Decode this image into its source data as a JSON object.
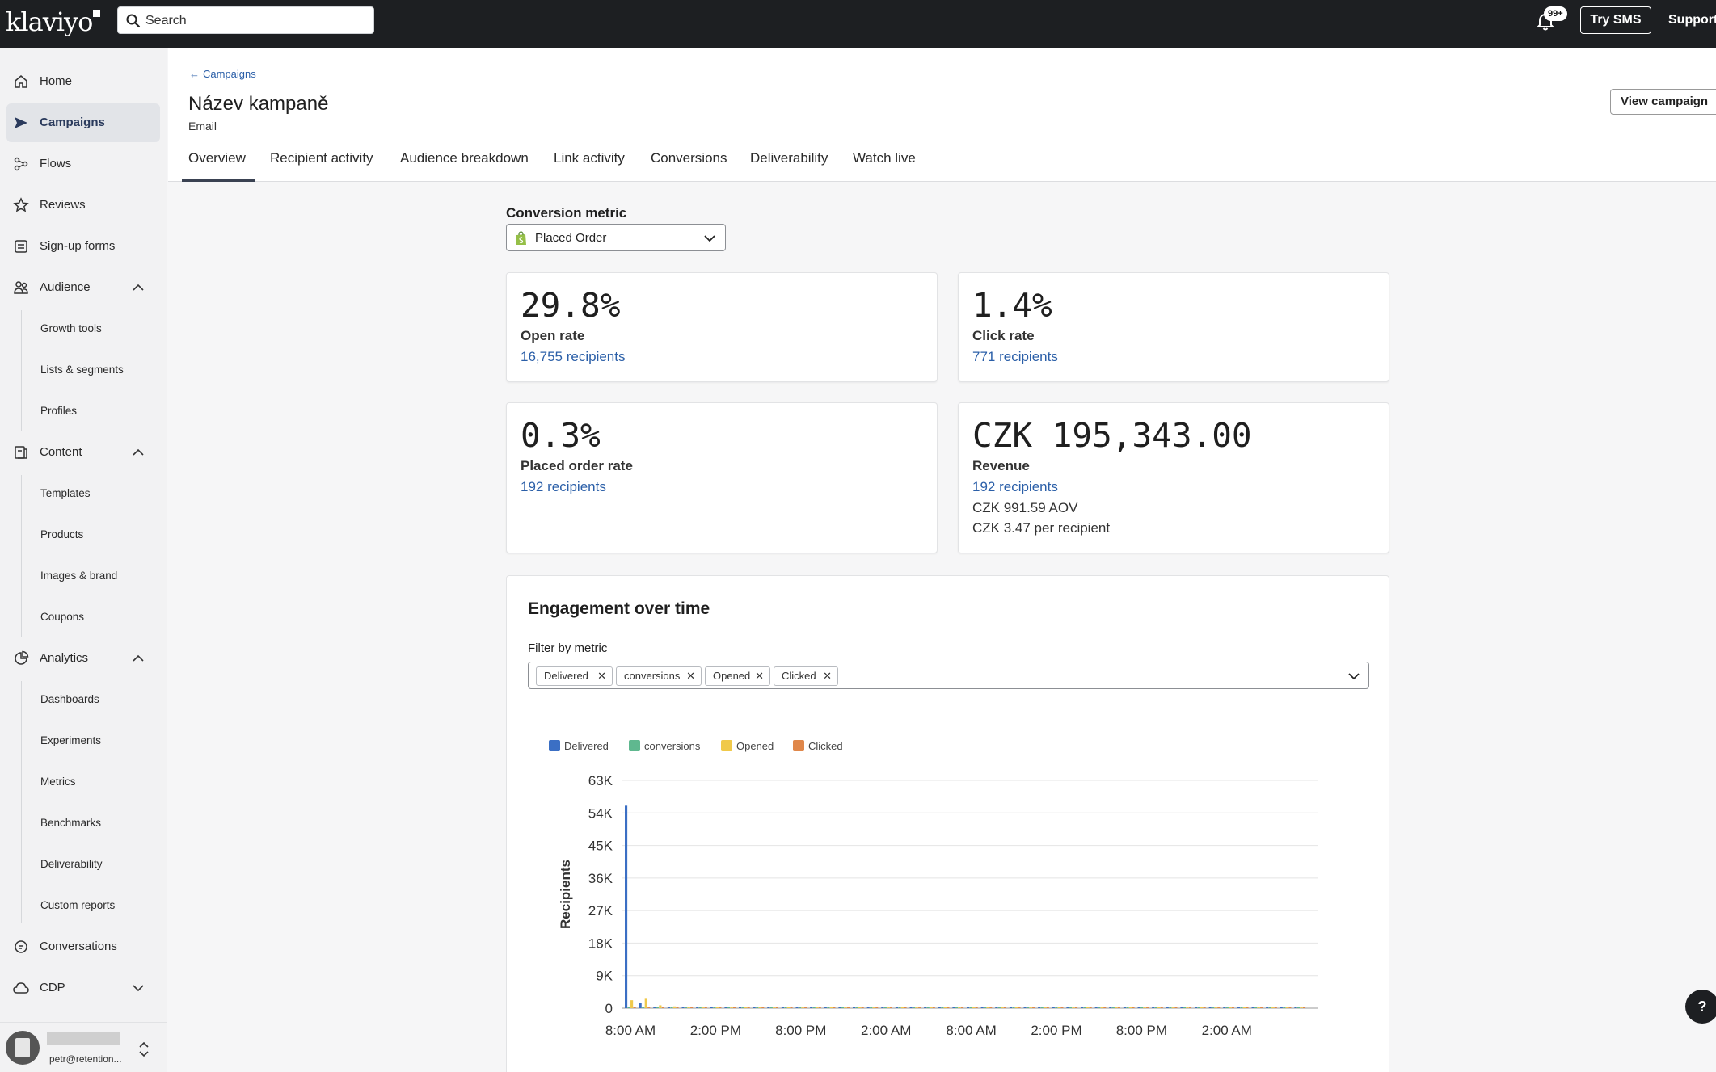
{
  "topbar": {
    "logo": "klaviyo",
    "search_placeholder": "Search",
    "notifications_badge": "99+",
    "try_sms": "Try SMS",
    "support": "Support"
  },
  "sidebar": {
    "items": [
      {
        "label": "Home",
        "icon": "home-icon"
      },
      {
        "label": "Campaigns",
        "icon": "send-icon",
        "active": true
      },
      {
        "label": "Flows",
        "icon": "flows-icon"
      },
      {
        "label": "Reviews",
        "icon": "star-icon"
      },
      {
        "label": "Sign-up forms",
        "icon": "form-icon"
      },
      {
        "label": "Audience",
        "icon": "audience-icon",
        "expanded": true
      },
      {
        "label": "Content",
        "icon": "content-icon",
        "expanded": true
      },
      {
        "label": "Analytics",
        "icon": "analytics-icon",
        "expanded": true
      },
      {
        "label": "Conversations",
        "icon": "chat-icon"
      },
      {
        "label": "CDP",
        "icon": "cloud-icon",
        "expanded": false
      }
    ],
    "audience_sub": [
      "Growth tools",
      "Lists & segments",
      "Profiles"
    ],
    "content_sub": [
      "Templates",
      "Products",
      "Images & brand",
      "Coupons"
    ],
    "analytics_sub": [
      "Dashboards",
      "Experiments",
      "Metrics",
      "Benchmarks",
      "Deliverability",
      "Custom reports"
    ],
    "profile_email": "petr@retention..."
  },
  "header": {
    "back_label": "Campaigns",
    "title": "Název kampaně",
    "subtitle": "Email",
    "view_button": "View campaign",
    "tabs": [
      "Overview",
      "Recipient activity",
      "Audience breakdown",
      "Link activity",
      "Conversions",
      "Deliverability",
      "Watch live"
    ],
    "active_tab": "Overview"
  },
  "conversion": {
    "label": "Conversion metric",
    "selected": "Placed Order"
  },
  "stats": {
    "open": {
      "value": "29.8%",
      "label": "Open rate",
      "link": "16,755 recipients"
    },
    "click": {
      "value": "1.4%",
      "label": "Click rate",
      "link": "771 recipients"
    },
    "placed": {
      "value": "0.3%",
      "label": "Placed order rate",
      "link": "192 recipients"
    },
    "revenue": {
      "value": "CZK 195,343.00",
      "label": "Revenue",
      "link": "192 recipients",
      "aov": "CZK 991.59 AOV",
      "per_recipient": "CZK 3.47 per recipient"
    }
  },
  "engagement": {
    "title": "Engagement over time",
    "filter_label": "Filter by metric",
    "chips": [
      "Delivered",
      "conversions",
      "Opened",
      "Clicked"
    ]
  },
  "colors": {
    "delivered": "#3b6fc4",
    "conversions": "#5fb88f",
    "opened": "#f0c94a",
    "clicked": "#e0874a",
    "link": "#2b5fa8"
  },
  "chart_data": {
    "type": "bar",
    "ylabel": "Recipients",
    "yticks": [
      "0",
      "9K",
      "18K",
      "27K",
      "36K",
      "45K",
      "54K",
      "63K"
    ],
    "ylim": [
      0,
      63000
    ],
    "xticks": [
      "8:00 AM",
      "2:00 PM",
      "8:00 PM",
      "2:00 AM",
      "8:00 AM",
      "2:00 PM",
      "8:00 PM",
      "2:00 AM"
    ],
    "series": [
      {
        "name": "Delivered",
        "values": [
          56000,
          1500,
          400,
          300,
          200,
          200,
          150,
          100,
          100,
          100,
          80,
          80,
          80,
          60,
          60,
          60,
          60,
          50,
          50,
          50,
          50,
          40,
          40,
          40,
          40,
          40,
          40,
          40,
          40,
          40,
          40,
          40,
          40,
          40,
          40,
          40,
          40,
          40,
          40,
          40,
          40,
          40,
          40,
          40,
          40,
          40,
          40,
          40
        ]
      },
      {
        "name": "conversions",
        "values": [
          80,
          300,
          200,
          150,
          120,
          100,
          90,
          80,
          70,
          60,
          60,
          50,
          50,
          50,
          40,
          40,
          40,
          40,
          40,
          30,
          30,
          30,
          30,
          30,
          30,
          30,
          30,
          30,
          30,
          30,
          30,
          30,
          30,
          30,
          30,
          30,
          30,
          30,
          30,
          30,
          30,
          30,
          30,
          30,
          30,
          30,
          30,
          30
        ]
      },
      {
        "name": "Opened",
        "values": [
          2200,
          2600,
          800,
          500,
          400,
          350,
          300,
          250,
          200,
          200,
          180,
          160,
          150,
          140,
          130,
          120,
          110,
          100,
          100,
          100,
          100,
          100,
          100,
          100,
          100,
          100,
          100,
          100,
          100,
          100,
          100,
          100,
          100,
          100,
          100,
          100,
          100,
          100,
          100,
          100,
          100,
          100,
          100,
          100,
          100,
          100,
          100,
          100
        ]
      },
      {
        "name": "Clicked",
        "values": [
          300,
          200,
          100,
          80,
          60,
          50,
          40,
          40,
          30,
          30,
          30,
          30,
          30,
          30,
          30,
          30,
          30,
          30,
          30,
          30,
          30,
          30,
          30,
          30,
          30,
          30,
          30,
          30,
          30,
          30,
          30,
          30,
          30,
          30,
          30,
          30,
          30,
          30,
          30,
          30,
          30,
          30,
          30,
          30,
          30,
          30,
          30,
          30
        ]
      }
    ]
  },
  "help_label": "?"
}
